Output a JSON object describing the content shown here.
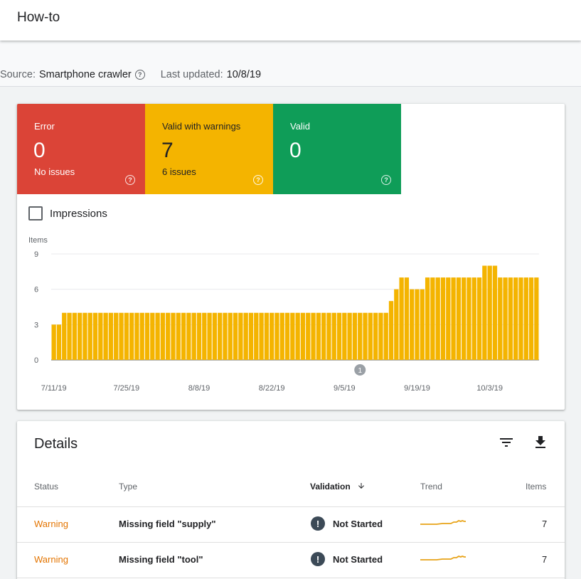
{
  "header": {
    "title": "How-to"
  },
  "info": {
    "source_label": "Source:",
    "source_value": "Smartphone crawler",
    "updated_label": "Last updated:",
    "updated_value": "10/8/19"
  },
  "tiles": [
    {
      "label": "Error",
      "value": "0",
      "sub": "No issues",
      "color": "#db4437"
    },
    {
      "label": "Valid with warnings",
      "value": "7",
      "sub": "6 issues",
      "color": "#f4b400"
    },
    {
      "label": "Valid",
      "value": "0",
      "sub": "",
      "color": "#0f9d58"
    }
  ],
  "impressions_label": "Impressions",
  "chart_data": {
    "type": "bar",
    "ylabel": "Items",
    "ylim": [
      0,
      9
    ],
    "yticks": [
      0,
      3,
      6,
      9
    ],
    "x_tick_labels": [
      "7/11/19",
      "7/25/19",
      "8/8/19",
      "8/22/19",
      "9/5/19",
      "9/19/19",
      "10/3/19"
    ],
    "annotation": {
      "label": "1",
      "date": "9/8/19"
    },
    "color": "#f4b400",
    "series": [
      {
        "values": [
          3,
          3,
          4,
          4,
          4,
          4,
          4,
          4,
          4,
          4,
          4,
          4,
          4,
          4,
          4,
          4,
          4,
          4,
          4,
          4,
          4,
          4,
          4,
          4,
          4,
          4,
          4,
          4,
          4,
          4,
          4,
          4,
          4,
          4,
          4,
          4,
          4,
          4,
          4,
          4,
          4,
          4,
          4,
          4,
          4,
          4,
          4,
          4,
          4,
          4,
          4,
          4,
          4,
          4,
          4,
          4,
          4,
          4,
          4,
          4,
          4,
          4,
          4,
          4,
          4,
          5,
          6,
          7,
          7,
          6,
          6,
          6,
          7,
          7,
          7,
          7,
          7,
          7,
          7,
          7,
          7,
          7,
          7,
          8,
          8,
          8,
          7,
          7,
          7,
          7,
          7,
          7,
          7,
          7
        ]
      }
    ]
  },
  "details": {
    "title": "Details",
    "columns": {
      "status": "Status",
      "type": "Type",
      "validation": "Validation",
      "trend": "Trend",
      "items": "Items"
    },
    "rows": [
      {
        "status": "Warning",
        "type": "Missing field \"supply\"",
        "validation": "Not Started",
        "items": "7"
      },
      {
        "status": "Warning",
        "type": "Missing field \"tool\"",
        "validation": "Not Started",
        "items": "7"
      }
    ]
  }
}
